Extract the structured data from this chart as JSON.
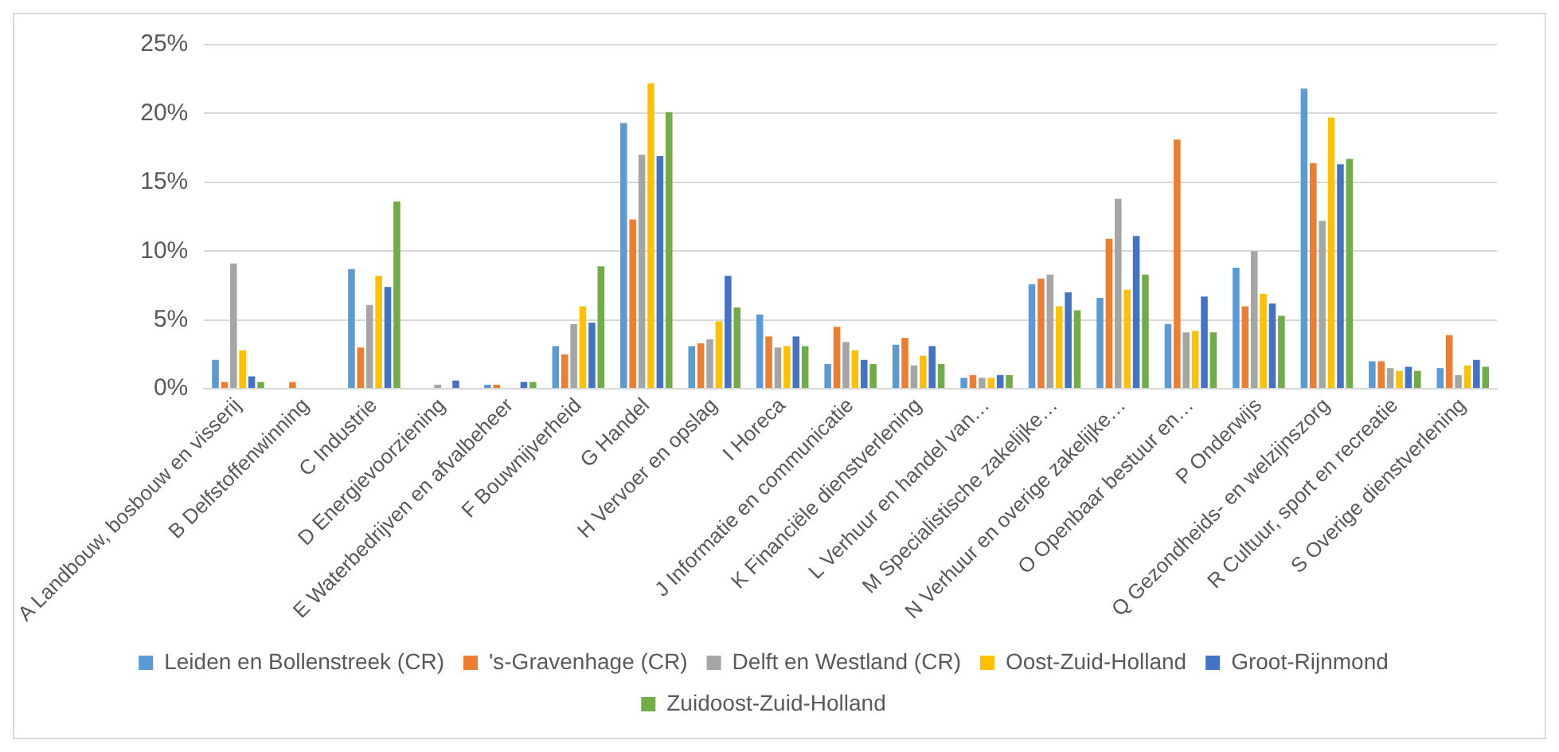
{
  "chart_data": {
    "type": "bar",
    "categories": [
      "A Landbouw, bosbouw en visserij",
      "B Delfstoffenwinning",
      "C Industrie",
      "D Energievoorziening",
      "E Waterbedrijven en afvalbeheer",
      "F Bouwnijverheid",
      "G Handel",
      "H Vervoer en opslag",
      "I Horeca",
      "J Informatie en communicatie",
      "K Financiële dienstverlening",
      "L Verhuur en handel van…",
      "M Specialistische zakelijke…",
      "N Verhuur en overige zakelijke…",
      "O Openbaar bestuur en…",
      "P Onderwijs",
      "Q Gezondheids- en welzijnszorg",
      "R Cultuur, sport en recreatie",
      "S Overige dienstverlening"
    ],
    "series": [
      {
        "name": "Leiden en Bollenstreek (CR)",
        "color": "#5b9bd5",
        "values": [
          2.1,
          0,
          8.7,
          0,
          0.3,
          3.1,
          19.3,
          3.1,
          5.4,
          1.8,
          3.2,
          0.8,
          7.6,
          6.6,
          4.7,
          8.8,
          21.8,
          2.0,
          1.5
        ]
      },
      {
        "name": "'s-Gravenhage (CR)",
        "color": "#ed7d31",
        "values": [
          0.5,
          0.5,
          3.0,
          0,
          0.3,
          2.5,
          12.3,
          3.3,
          3.8,
          4.5,
          3.7,
          1.0,
          8.0,
          10.9,
          18.1,
          6.0,
          16.4,
          2.0,
          3.9
        ]
      },
      {
        "name": "Delft en Westland (CR)",
        "color": "#a5a5a5",
        "values": [
          9.1,
          0,
          6.1,
          0.3,
          0,
          4.7,
          17.0,
          3.6,
          3.0,
          3.4,
          1.7,
          0.8,
          8.3,
          13.8,
          4.1,
          10.0,
          12.2,
          1.5,
          1.0
        ]
      },
      {
        "name": "Oost-Zuid-Holland",
        "color": "#ffc000",
        "values": [
          2.8,
          0,
          8.2,
          0,
          0,
          6.0,
          22.2,
          4.9,
          3.1,
          2.8,
          2.4,
          0.8,
          6.0,
          7.2,
          4.2,
          6.9,
          19.7,
          1.3,
          1.7
        ]
      },
      {
        "name": "Groot-Rijnmond",
        "color": "#4472c4",
        "values": [
          0.9,
          0,
          7.4,
          0.6,
          0.5,
          4.8,
          16.9,
          8.2,
          3.8,
          2.1,
          3.1,
          1.0,
          7.0,
          11.1,
          6.7,
          6.2,
          16.3,
          1.6,
          2.1
        ]
      },
      {
        "name": "Zuidoost-Zuid-Holland",
        "color": "#70ad47",
        "values": [
          0.5,
          0,
          13.6,
          0,
          0.5,
          8.9,
          20.1,
          5.9,
          3.1,
          1.8,
          1.8,
          1.0,
          5.7,
          8.3,
          4.1,
          5.3,
          16.7,
          1.3,
          1.6
        ]
      }
    ],
    "ylim": [
      0,
      25
    ],
    "yticks": [
      {
        "value": 0,
        "label": "0%"
      },
      {
        "value": 5,
        "label": "5%"
      },
      {
        "value": 10,
        "label": "10%"
      },
      {
        "value": 15,
        "label": "15%"
      },
      {
        "value": 20,
        "label": "20%"
      },
      {
        "value": 25,
        "label": "25%"
      }
    ],
    "grid": "y",
    "legend": "bottom"
  }
}
